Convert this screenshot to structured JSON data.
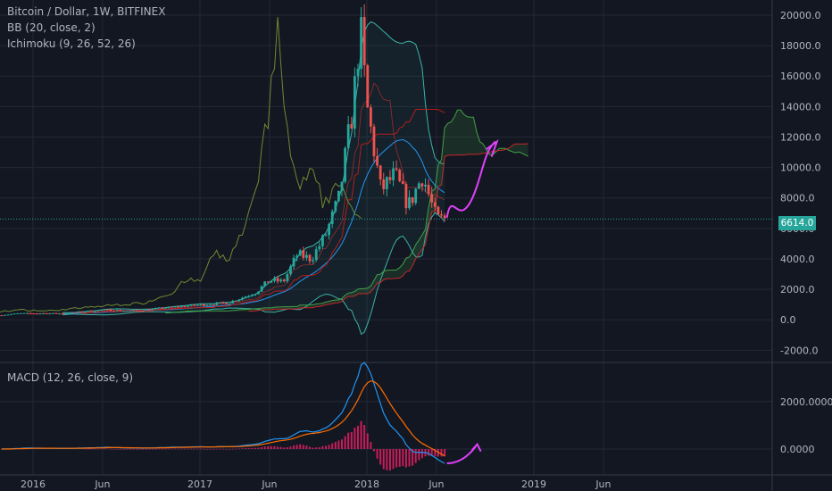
{
  "header": {
    "symbol": "Bitcoin / Dollar, 1W, BITFINEX",
    "indicator_bb": "BB (20, close, 2)",
    "indicator_ichimoku": "Ichimoku (9, 26, 52, 26)",
    "indicator_macd": "MACD (12, 26, close, 9)"
  },
  "current_price_label": "6614.0",
  "colors": {
    "background": "#131722",
    "grid": "#242836",
    "axis_text": "#b2b5be",
    "up": "#26a69a",
    "down": "#ef5350",
    "bb": "#3bb3a8",
    "ichimoku_lagging": "#6d8a30",
    "ichimoku_base": "#b71c1c",
    "macd_line": "#2196f3",
    "signal_line": "#ff6d00",
    "histogram": "#e91e63",
    "annotation": "#e040fb",
    "price_line": "#26a69a"
  },
  "chart_data": [
    {
      "type": "line",
      "title": "Bitcoin / Dollar, 1W, BITFINEX",
      "ylim": [
        -2000,
        20000
      ],
      "y_ticks": [
        "20000.0",
        "18000.0",
        "16000.0",
        "14000.0",
        "12000.0",
        "10000.0",
        "8000.0",
        "6000.0",
        "4000.0",
        "2000.0",
        "0.0",
        "-2000.0"
      ],
      "x_ticks": [
        "Jun",
        "2016",
        "Jun",
        "2017",
        "Jun",
        "2018",
        "Jun",
        "2019",
        "Jun"
      ],
      "current_price": 6614.0,
      "series": [
        {
          "x": [
            "2015-05",
            "2015-08",
            "2015-11",
            "2016-02",
            "2016-05",
            "2016-08",
            "2016-11",
            "2017-01",
            "2017-03",
            "2017-05",
            "2017-06",
            "2017-08",
            "2017-09",
            "2017-10",
            "2017-11",
            "2017-12",
            "2017-12-17",
            "2018-01",
            "2018-02",
            "2018-03",
            "2018-04",
            "2018-05",
            "2018-06",
            "2018-06-20"
          ],
          "values": [
            240,
            230,
            330,
            410,
            450,
            600,
            720,
            950,
            1100,
            1800,
            2500,
            3500,
            4200,
            5600,
            8000,
            14000,
            19500,
            13000,
            9000,
            8000,
            7000,
            9000,
            6200,
            6614
          ]
        }
      ]
    },
    {
      "type": "line",
      "title": "MACD (12, 26, close, 9)",
      "ylim": [
        -800,
        3300
      ],
      "y_ticks": [
        "2000.0000",
        "0.0000"
      ],
      "x_ticks": [
        "Jun",
        "2016",
        "Jun",
        "2017",
        "Jun",
        "2018",
        "Jun",
        "2019",
        "Jun"
      ],
      "series": [
        {
          "x": [
            "2015-05",
            "2016-06",
            "2017-01",
            "2017-06",
            "2017-09",
            "2017-11",
            "2017-12",
            "2018-01",
            "2018-02",
            "2018-03",
            "2018-04",
            "2018-05",
            "2018-06"
          ],
          "values": [
            5,
            20,
            50,
            200,
            400,
            1000,
            2500,
            3000,
            2500,
            1500,
            800,
            200,
            -500
          ]
        },
        {
          "x": [
            "2015-05",
            "2016-06",
            "2017-01",
            "2017-06",
            "2017-09",
            "2017-11",
            "2017-12",
            "2018-01",
            "2018-02",
            "2018-03",
            "2018-04",
            "2018-05",
            "2018-06"
          ],
          "values": [
            5,
            15,
            40,
            150,
            300,
            700,
            1800,
            2600,
            2500,
            2000,
            1200,
            500,
            -100
          ]
        }
      ]
    }
  ]
}
